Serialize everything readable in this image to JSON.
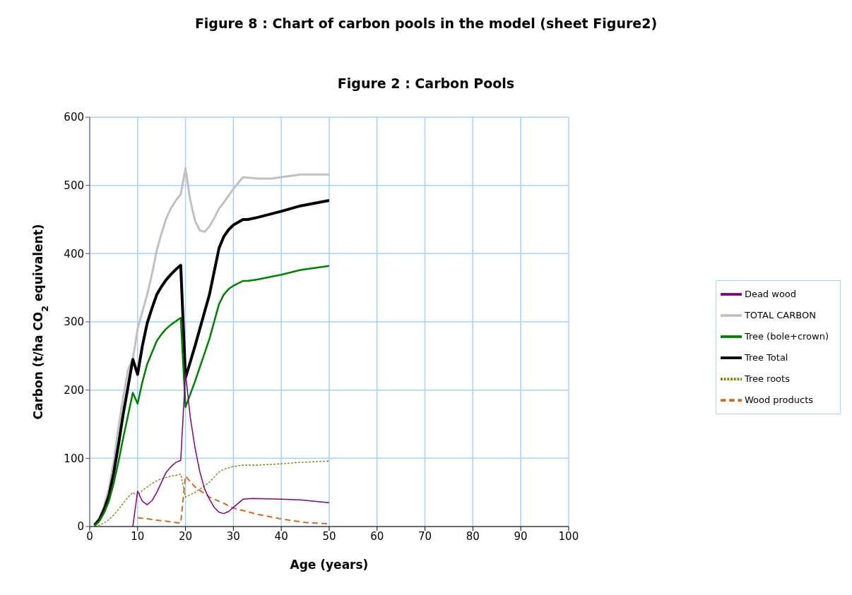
{
  "chart_data": {
    "type": "line",
    "title": "Figure 8 :  Chart of carbon pools in the model (sheet Figure2)",
    "subtitle": "Figure 2 : Carbon Pools",
    "xlabel": "Age (years)",
    "ylabel": "Carbon (t/ha CO$_{2}$ equivalent)",
    "xlim": [
      0,
      100
    ],
    "xticks": [
      0,
      10,
      20,
      30,
      40,
      50,
      60,
      70,
      80,
      90,
      100
    ],
    "ylim": [
      0,
      600
    ],
    "yticks": [
      0,
      100,
      200,
      300,
      400,
      500,
      600
    ],
    "grid": true,
    "legend": "right",
    "marker": "none",
    "series": [
      {
        "name": "TOTAL CARBON",
        "color": "#c0c0c0",
        "line_style": "solid",
        "x": [
          1,
          2,
          3,
          4,
          5,
          6,
          7,
          8,
          9,
          10,
          11,
          12,
          13,
          14,
          15,
          16,
          17,
          18,
          19,
          20,
          21,
          22,
          23,
          24,
          25,
          26,
          27,
          28,
          29,
          30,
          32,
          35,
          38,
          40,
          44,
          50
        ],
        "values": [
          3,
          12,
          30,
          55,
          95,
          145,
          190,
          230,
          245,
          290,
          315,
          340,
          370,
          405,
          430,
          452,
          467,
          478,
          487,
          525,
          478,
          448,
          434,
          432,
          440,
          452,
          466,
          475,
          485,
          495,
          512,
          510,
          510,
          512,
          516,
          516
        ]
      },
      {
        "name": "Tree Total",
        "color": "#000000",
        "line_style": "solid",
        "x": [
          1,
          2,
          3,
          4,
          5,
          6,
          7,
          8,
          9,
          10,
          11,
          12,
          13,
          14,
          15,
          16,
          17,
          18,
          19,
          20,
          22,
          25,
          27,
          28,
          29,
          30,
          32,
          33,
          35,
          40,
          44,
          50
        ],
        "values": [
          2,
          10,
          25,
          45,
          78,
          120,
          165,
          205,
          245,
          223,
          265,
          298,
          320,
          340,
          352,
          362,
          370,
          377,
          383,
          218,
          265,
          340,
          408,
          425,
          435,
          442,
          450,
          450,
          453,
          462,
          470,
          478
        ]
      },
      {
        "name": "Tree (bole+crown)",
        "color": "#008000",
        "line_style": "solid",
        "x": [
          1,
          2,
          3,
          4,
          5,
          6,
          7,
          8,
          9,
          10,
          11,
          12,
          13,
          14,
          15,
          16,
          17,
          18,
          19,
          20,
          22,
          25,
          27,
          28,
          29,
          30,
          32,
          33,
          35,
          40,
          44,
          50
        ],
        "values": [
          1,
          8,
          20,
          37,
          63,
          95,
          130,
          163,
          196,
          180,
          212,
          238,
          255,
          272,
          282,
          290,
          296,
          301,
          306,
          175,
          213,
          275,
          326,
          340,
          348,
          353,
          360,
          360,
          362,
          369,
          376,
          382
        ]
      },
      {
        "name": "Tree roots",
        "color": "#808000",
        "line_style": "dotted",
        "x": [
          1,
          2,
          3,
          4,
          5,
          6,
          7,
          8,
          9,
          10,
          11,
          12,
          13,
          14,
          15,
          16,
          17,
          18,
          19,
          20,
          22,
          25,
          27,
          28,
          29,
          30,
          32,
          35,
          40,
          44,
          50
        ],
        "values": [
          0,
          2,
          5,
          10,
          17,
          25,
          34,
          43,
          50,
          45,
          53,
          58,
          63,
          67,
          70,
          72,
          74,
          75,
          77,
          43,
          50,
          65,
          80,
          84,
          86,
          88,
          90,
          90,
          92,
          94,
          96
        ]
      },
      {
        "name": "Wood products",
        "color": "#d2691e",
        "line_style": "dashed",
        "x": [
          10,
          19,
          20,
          22,
          25,
          28,
          30,
          35,
          40,
          45,
          50
        ],
        "values": [
          13,
          5,
          74,
          58,
          43,
          34,
          27,
          18,
          11,
          6,
          4
        ]
      },
      {
        "name": "Dead wood",
        "color": "#800080",
        "line_style": "solid",
        "x": [
          9,
          10,
          11,
          12,
          13,
          14,
          15,
          16,
          17,
          18,
          19,
          20,
          21,
          22,
          23,
          24,
          25,
          26,
          27,
          28,
          29,
          30,
          32,
          34,
          40,
          44,
          50
        ],
        "values": [
          0,
          52,
          37,
          32,
          38,
          50,
          65,
          80,
          88,
          94,
          97,
          225,
          160,
          115,
          80,
          55,
          40,
          28,
          21,
          19,
          22,
          28,
          40,
          41,
          40,
          39,
          35
        ]
      }
    ]
  }
}
